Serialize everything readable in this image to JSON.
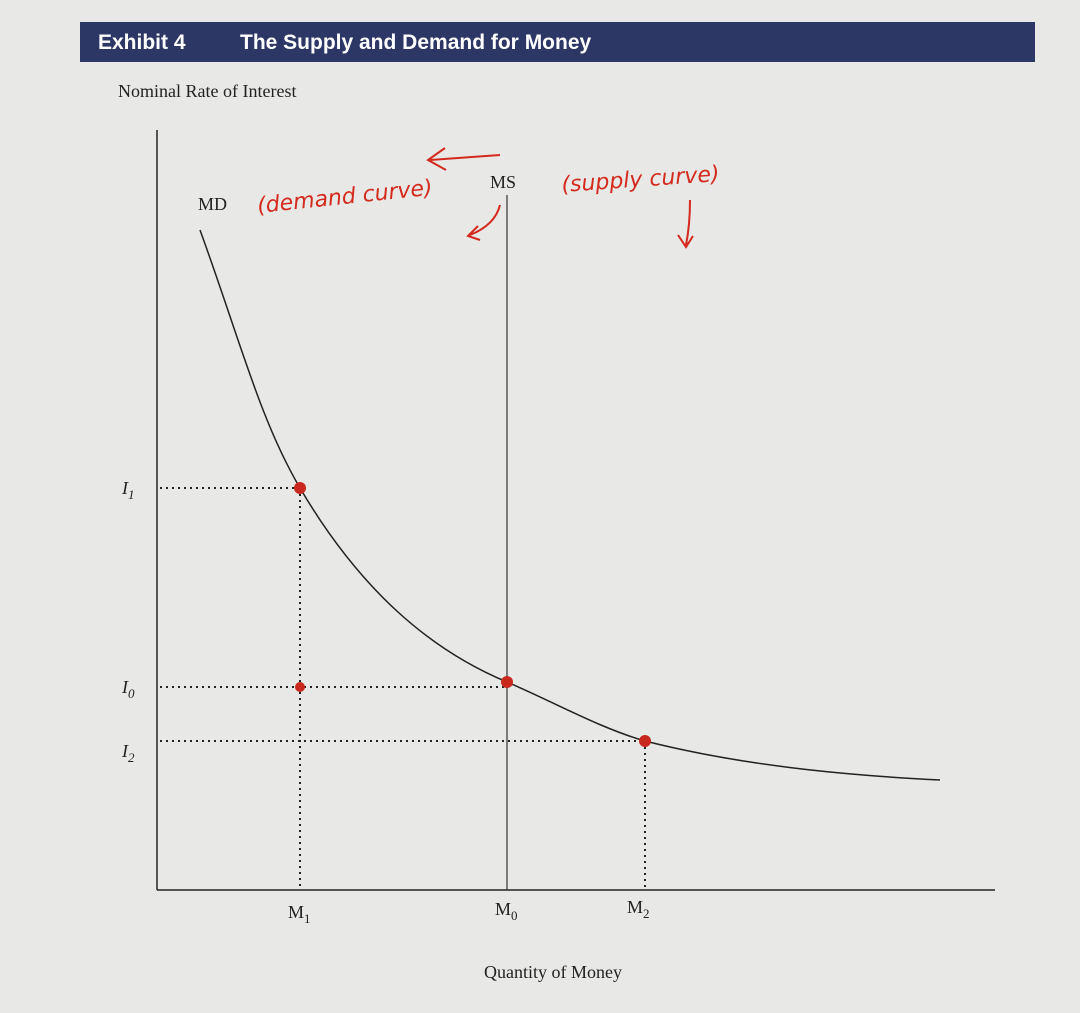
{
  "header": {
    "exhibit": "Exhibit 4",
    "title": "The Supply and Demand for Money"
  },
  "axes": {
    "y_label": "Nominal Rate of Interest",
    "x_label": "Quantity of Money"
  },
  "curves": [
    {
      "label": "MD",
      "note": "(demand curve)"
    },
    {
      "label": "MS",
      "note": "(supply curve)"
    }
  ],
  "y_levels": [
    {
      "base": "I",
      "sub": "1"
    },
    {
      "base": "I",
      "sub": "0"
    },
    {
      "base": "I",
      "sub": "2"
    }
  ],
  "x_levels": [
    {
      "base": "M",
      "sub": "1"
    },
    {
      "base": "M",
      "sub": "0"
    },
    {
      "base": "M",
      "sub": "2"
    }
  ]
}
